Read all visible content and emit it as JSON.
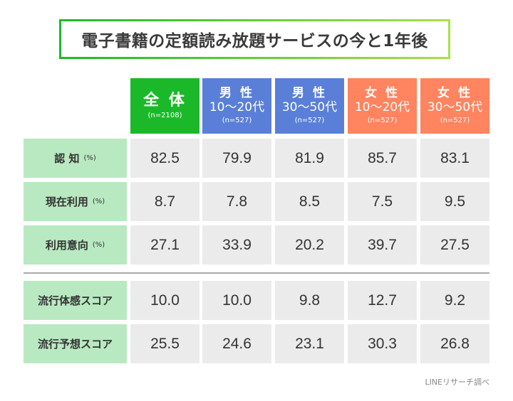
{
  "title": "電子書籍の定額読み放題サービスの今と1年後",
  "columns": [
    {
      "line1": "全 体",
      "line2": "",
      "n": "(n=2108)",
      "color": "#1bb92a"
    },
    {
      "line1": "男 性",
      "line2": "10〜20代",
      "n": "(n=527)",
      "color": "#5a7fd8"
    },
    {
      "line1": "男 性",
      "line2": "30〜50代",
      "n": "(n=527)",
      "color": "#5a7fd8"
    },
    {
      "line1": "女 性",
      "line2": "10〜20代",
      "n": "(n=527)",
      "color": "#ff845f"
    },
    {
      "line1": "女 性",
      "line2": "30〜50代",
      "n": "(n=527)",
      "color": "#ff845f"
    }
  ],
  "rows": [
    {
      "label": "認 知",
      "unit": "(%)",
      "values": [
        "82.5",
        "79.9",
        "81.9",
        "85.7",
        "83.1"
      ]
    },
    {
      "label": "現在利用",
      "unit": "(%)",
      "values": [
        "8.7",
        "7.8",
        "8.5",
        "7.5",
        "9.5"
      ]
    },
    {
      "label": "利用意向",
      "unit": "(%)",
      "values": [
        "27.1",
        "33.9",
        "20.2",
        "39.7",
        "27.5"
      ]
    },
    {
      "label": "流行体感スコア",
      "unit": "",
      "values": [
        "10.0",
        "10.0",
        "9.8",
        "12.7",
        "9.2"
      ]
    },
    {
      "label": "流行予想スコア",
      "unit": "",
      "values": [
        "25.5",
        "24.6",
        "23.1",
        "30.3",
        "26.8"
      ]
    }
  ],
  "footer": "LINEリサーチ調べ"
}
